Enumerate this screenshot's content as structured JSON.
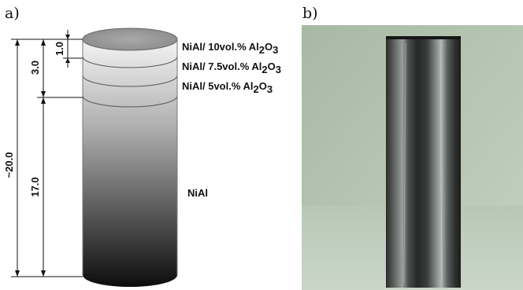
{
  "panel_a": {
    "label": "a)",
    "layers": [
      {
        "prefix": "NiAl/ 10vol.% Al",
        "sub1": "2",
        "mid": "O",
        "sub2": "3"
      },
      {
        "prefix": "NiAl/ 7.5vol.% Al",
        "sub1": "2",
        "mid": "O",
        "sub2": "3"
      },
      {
        "prefix": "NiAl/ 5vol.% Al",
        "sub1": "2",
        "mid": "O",
        "sub2": "3"
      }
    ],
    "base_label": "NiAl",
    "dimensions": {
      "total": "~20.0",
      "graded_zone": "3.0",
      "top_layer": "1.0",
      "base": "17.0"
    }
  },
  "panel_b": {
    "label": "b)"
  }
}
